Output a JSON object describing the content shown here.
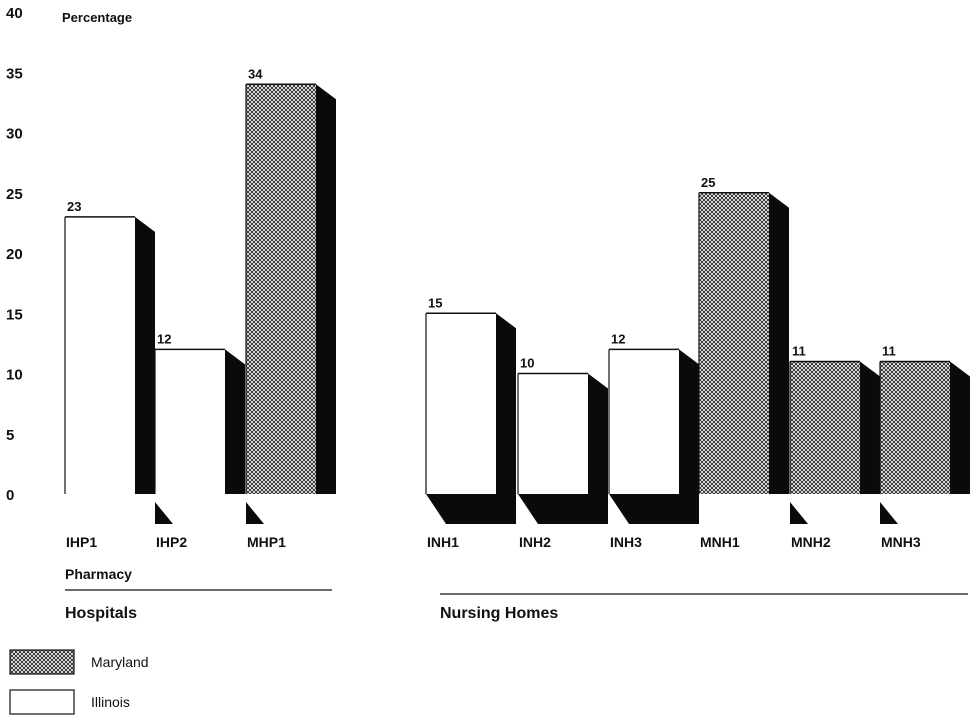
{
  "chart_data": {
    "type": "bar",
    "ylabel": "Percentage",
    "ylim": [
      0,
      40
    ],
    "yticks": [
      "0",
      "5",
      "10",
      "15",
      "20",
      "25",
      "30",
      "35",
      "40"
    ],
    "categories": [
      "IHP1",
      "IHP2",
      "MHP1",
      "INH1",
      "INH2",
      "INH3",
      "MNH1",
      "MNH2",
      "MNH3"
    ],
    "values": [
      23,
      12,
      34,
      15,
      10,
      12,
      25,
      11,
      11
    ],
    "value_labels": [
      "23",
      "12",
      "34",
      "15",
      "10",
      "12",
      "25",
      "11",
      "11"
    ],
    "states": [
      "Illinois",
      "Illinois",
      "Maryland",
      "Illinois",
      "Illinois",
      "Illinois",
      "Maryland",
      "Maryland",
      "Maryland"
    ],
    "groups": [
      {
        "label": "Hospitals",
        "sublabel": "Pharmacy"
      },
      {
        "label": "Nursing Homes",
        "sublabel": ""
      }
    ],
    "legend": [
      {
        "name": "Maryland",
        "pattern": "crosshatch"
      },
      {
        "name": "Illinois",
        "pattern": "white"
      }
    ],
    "colors": {
      "ink": "#111111",
      "illinois_fill": "#ffffff",
      "maryland_fill": "#9a9a9a",
      "side": "#0a0a0a"
    }
  }
}
